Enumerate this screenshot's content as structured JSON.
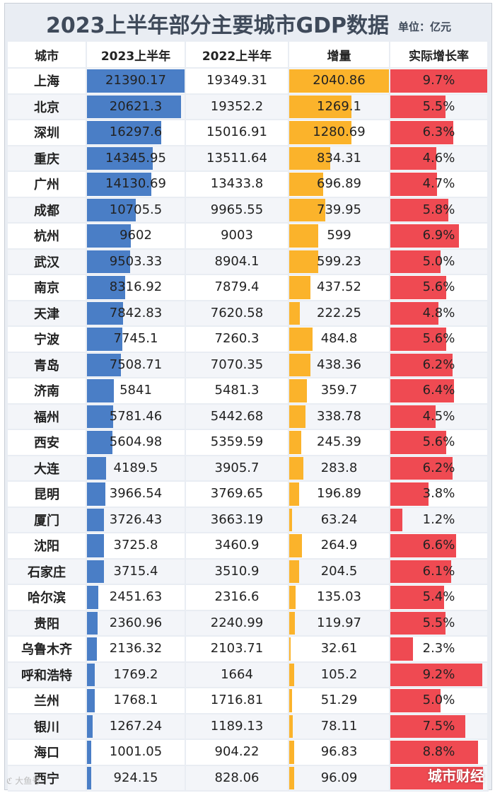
{
  "header": {
    "title": "2023上半年部分主要城市GDP数据",
    "unit": "单位：亿元"
  },
  "colors": {
    "gdp2023": "#4a7ec6",
    "increase": "#fbb32b",
    "growth": "#ef4a52"
  },
  "watermark": "城市财经",
  "corner_mark": "ℭ 大鱼号",
  "chart_data": {
    "type": "table",
    "title": "2023上半年部分主要城市GDP数据",
    "unit": "单位：亿元",
    "columns": [
      "城市",
      "2023上半年",
      "2022上半年",
      "增量",
      "实际增长率"
    ],
    "bars": {
      "2023上半年": {
        "max": 21390.17
      },
      "增量": {
        "max": 2040.86
      },
      "实际增长率": {
        "max": 9.7
      }
    },
    "rows": [
      {
        "city": "上海",
        "gdp2023": "21390.17",
        "gdp2022": "19349.31",
        "increase": "2040.86",
        "growth": "9.7%",
        "g": 9.7
      },
      {
        "city": "北京",
        "gdp2023": "20621.3",
        "gdp2022": "19352.2",
        "increase": "1269.1",
        "growth": "5.5%",
        "g": 5.5
      },
      {
        "city": "深圳",
        "gdp2023": "16297.6",
        "gdp2022": "15016.91",
        "increase": "1280.69",
        "growth": "6.3%",
        "g": 6.3
      },
      {
        "city": "重庆",
        "gdp2023": "14345.95",
        "gdp2022": "13511.64",
        "increase": "834.31",
        "growth": "4.6%",
        "g": 4.6
      },
      {
        "city": "广州",
        "gdp2023": "14130.69",
        "gdp2022": "13433.8",
        "increase": "696.89",
        "growth": "4.7%",
        "g": 4.7
      },
      {
        "city": "成都",
        "gdp2023": "10705.5",
        "gdp2022": "9965.55",
        "increase": "739.95",
        "growth": "5.8%",
        "g": 5.8
      },
      {
        "city": "杭州",
        "gdp2023": "9602",
        "gdp2022": "9003",
        "increase": "599",
        "growth": "6.9%",
        "g": 6.9
      },
      {
        "city": "武汉",
        "gdp2023": "9503.33",
        "gdp2022": "8904.1",
        "increase": "599.23",
        "growth": "5.0%",
        "g": 5.0
      },
      {
        "city": "南京",
        "gdp2023": "8316.92",
        "gdp2022": "7879.4",
        "increase": "437.52",
        "growth": "5.6%",
        "g": 5.6
      },
      {
        "city": "天津",
        "gdp2023": "7842.83",
        "gdp2022": "7620.58",
        "increase": "222.25",
        "growth": "4.8%",
        "g": 4.8
      },
      {
        "city": "宁波",
        "gdp2023": "7745.1",
        "gdp2022": "7260.3",
        "increase": "484.8",
        "growth": "5.6%",
        "g": 5.6
      },
      {
        "city": "青岛",
        "gdp2023": "7508.71",
        "gdp2022": "7070.35",
        "increase": "438.36",
        "growth": "6.2%",
        "g": 6.2
      },
      {
        "city": "济南",
        "gdp2023": "5841",
        "gdp2022": "5481.3",
        "increase": "359.7",
        "growth": "6.4%",
        "g": 6.4
      },
      {
        "city": "福州",
        "gdp2023": "5781.46",
        "gdp2022": "5442.68",
        "increase": "338.78",
        "growth": "4.5%",
        "g": 4.5
      },
      {
        "city": "西安",
        "gdp2023": "5604.98",
        "gdp2022": "5359.59",
        "increase": "245.39",
        "growth": "5.6%",
        "g": 5.6
      },
      {
        "city": "大连",
        "gdp2023": "4189.5",
        "gdp2022": "3905.7",
        "increase": "283.8",
        "growth": "6.2%",
        "g": 6.2
      },
      {
        "city": "昆明",
        "gdp2023": "3966.54",
        "gdp2022": "3769.65",
        "increase": "196.89",
        "growth": "3.8%",
        "g": 3.8
      },
      {
        "city": "厦门",
        "gdp2023": "3726.43",
        "gdp2022": "3663.19",
        "increase": "63.24",
        "growth": "1.2%",
        "g": 1.2
      },
      {
        "city": "沈阳",
        "gdp2023": "3725.8",
        "gdp2022": "3460.9",
        "increase": "264.9",
        "growth": "6.6%",
        "g": 6.6
      },
      {
        "city": "石家庄",
        "gdp2023": "3715.4",
        "gdp2022": "3510.9",
        "increase": "204.5",
        "growth": "6.1%",
        "g": 6.1
      },
      {
        "city": "哈尔滨",
        "gdp2023": "2451.63",
        "gdp2022": "2316.6",
        "increase": "135.03",
        "growth": "5.4%",
        "g": 5.4
      },
      {
        "city": "贵阳",
        "gdp2023": "2360.96",
        "gdp2022": "2240.99",
        "increase": "119.97",
        "growth": "5.5%",
        "g": 5.5
      },
      {
        "city": "乌鲁木齐",
        "gdp2023": "2136.32",
        "gdp2022": "2103.71",
        "increase": "32.61",
        "growth": "2.3%",
        "g": 2.3
      },
      {
        "city": "呼和浩特",
        "gdp2023": "1769.2",
        "gdp2022": "1664",
        "increase": "105.2",
        "growth": "9.2%",
        "g": 9.2
      },
      {
        "city": "兰州",
        "gdp2023": "1768.1",
        "gdp2022": "1716.81",
        "increase": "51.29",
        "growth": "5.0%",
        "g": 5.0
      },
      {
        "city": "银川",
        "gdp2023": "1267.24",
        "gdp2022": "1189.13",
        "increase": "78.11",
        "growth": "7.5%",
        "g": 7.5
      },
      {
        "city": "海口",
        "gdp2023": "1001.05",
        "gdp2022": "904.22",
        "increase": "96.83",
        "growth": "8.8%",
        "g": 8.8
      },
      {
        "city": "西宁",
        "gdp2023": "924.15",
        "gdp2022": "828.06",
        "increase": "96.09",
        "growth": "",
        "g": 9.3
      }
    ]
  }
}
